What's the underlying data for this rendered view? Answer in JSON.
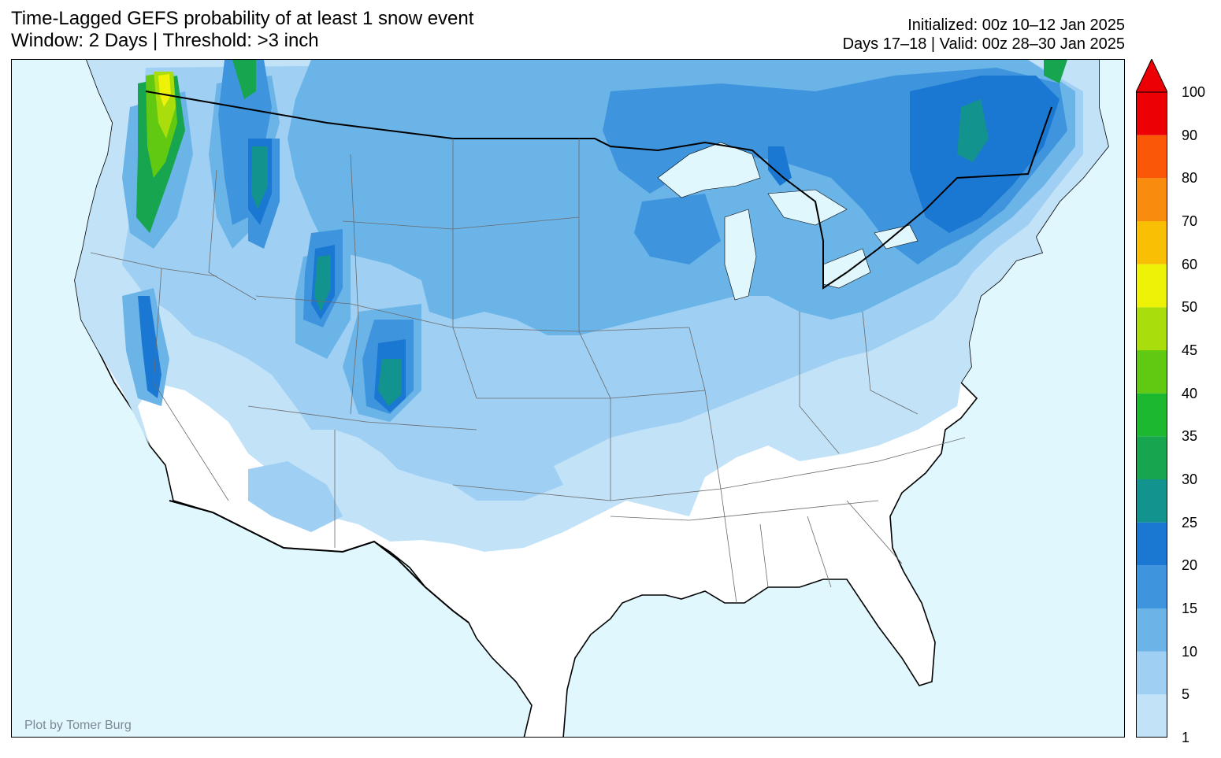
{
  "title": {
    "line1": "Time-Lagged GEFS probability of at least 1 snow event",
    "line2": "Window: 2 Days | Threshold: >3 inch"
  },
  "info": {
    "initialized": "Initialized: 00z 10–12 Jan 2025",
    "valid": "Days 17–18 | Valid: 00z 28–30 Jan 2025"
  },
  "credit": "Plot by Tomer Burg",
  "colorbar": {
    "levels": [
      "1",
      "5",
      "10",
      "15",
      "20",
      "25",
      "30",
      "35",
      "40",
      "45",
      "50",
      "60",
      "70",
      "80",
      "90",
      "100"
    ],
    "colors": [
      "#c2e2f8",
      "#9fcff2",
      "#6bb4e8",
      "#3f95dd",
      "#1a78d2",
      "#13938e",
      "#18a54f",
      "#1cb930",
      "#62c912",
      "#a9dd0b",
      "#eef206",
      "#f9bf04",
      "#f98b0e",
      "#fa5706",
      "#ec0005"
    ],
    "extend_color": "#ec0005"
  },
  "map_colors": {
    "ocean": "#e0f7fe",
    "land": "#ffffff"
  }
}
